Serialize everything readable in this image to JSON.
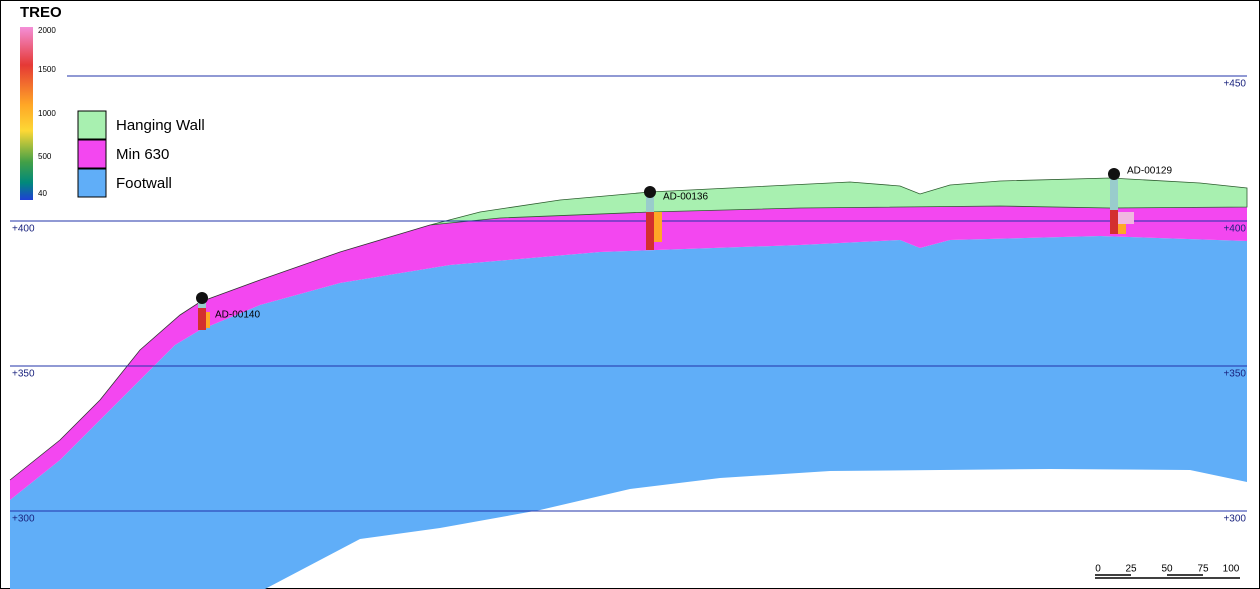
{
  "colorbar": {
    "title": "TREO",
    "labels": [
      "2000",
      "1500",
      "1000",
      "500",
      "40"
    ]
  },
  "legend": [
    "Hanging Wall",
    "Min 630",
    "Footwall"
  ],
  "elevations": [
    "+450",
    "+400",
    "+350",
    "+300"
  ],
  "drillholes": [
    "AD-00140",
    "AD-00136",
    "AD-00129"
  ],
  "scale_bar": [
    "0",
    "25",
    "50",
    "75",
    "100"
  ]
}
